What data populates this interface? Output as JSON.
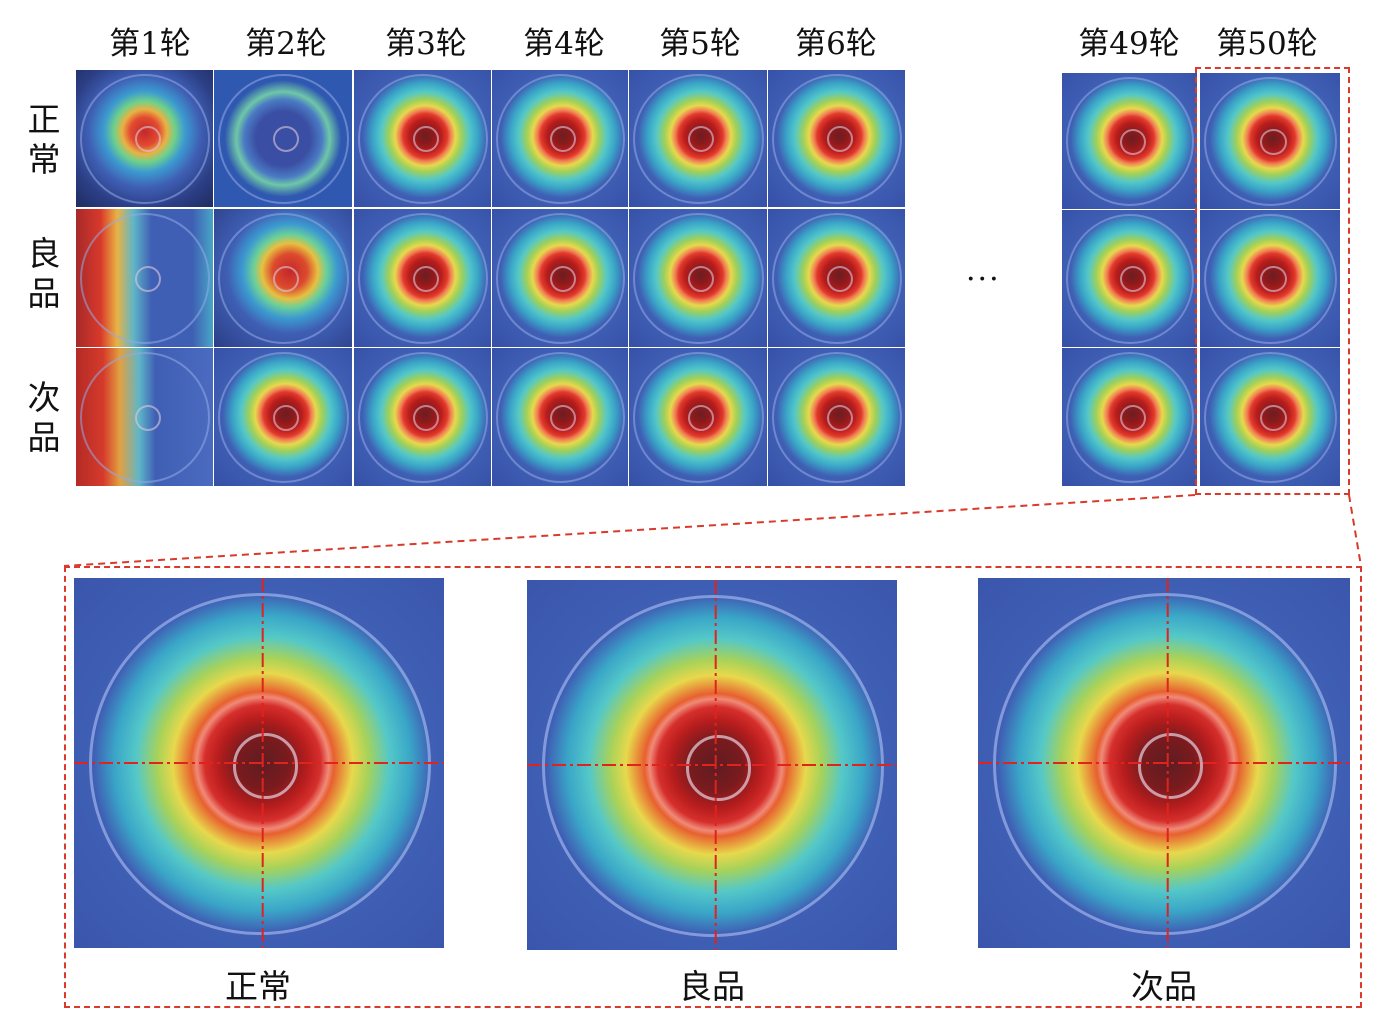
{
  "columns": [
    "第1轮",
    "第2轮",
    "第3轮",
    "第4轮",
    "第5轮",
    "第6轮",
    "第49轮",
    "第50轮"
  ],
  "rows": [
    "正常",
    "良品",
    "次品"
  ],
  "ellipsis": "···",
  "zoom_captions": [
    "正常",
    "良品",
    "次品"
  ],
  "colors": {
    "dash": "#d93a2b",
    "background_blue": "#3f5fb4",
    "heat_red": "#b81d1d",
    "heat_yellow": "#e8d84c",
    "heat_cyan": "#54c8c8"
  }
}
